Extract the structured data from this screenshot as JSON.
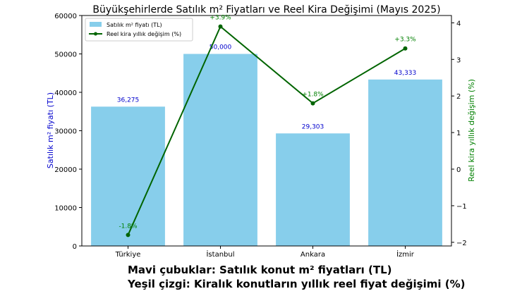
{
  "chart_data": {
    "type": "bar",
    "title": "Büyükşehirlerde Satılık m² Fiyatları ve Reel Kira Değişimi (Mayıs 2025)",
    "categories": [
      "Türkiye",
      "İstanbul",
      "Ankara",
      "İzmir"
    ],
    "series": [
      {
        "name": "Satılık m² fiyatı (TL)",
        "type": "bar",
        "axis": "left",
        "values": [
          36275,
          50000,
          29303,
          43333
        ],
        "labels": [
          "36,275",
          "50,000",
          "29,303",
          "43,333"
        ],
        "color": "#87ceeb"
      },
      {
        "name": "Reel kira yıllık değişim (%)",
        "type": "line",
        "axis": "right",
        "values": [
          -1.8,
          3.9,
          1.8,
          3.3
        ],
        "labels": [
          "-1.8%",
          "+3.9%",
          "+1.8%",
          "+3.3%"
        ],
        "color": "#006400"
      }
    ],
    "ylabel_left": "Satılık m² fiyatı (TL)",
    "ylabel_right": "Reel kira yıllık değişim (%)",
    "ylim_left": [
      0,
      60000
    ],
    "ylim_right": [
      -2.1,
      4.2
    ],
    "yticks_left": [
      0,
      10000,
      20000,
      30000,
      40000,
      50000,
      60000
    ],
    "yticks_right": [
      -2,
      -1,
      0,
      1,
      2,
      3,
      4
    ],
    "ytick_labels_right": [
      "−2",
      "−1",
      "0",
      "1",
      "2",
      "3",
      "4"
    ],
    "left_label_color": "#0000cd",
    "right_label_color": "#008000",
    "bar_label_color": "#0000cd",
    "line_label_color": "#008000",
    "grid": false,
    "legend_position": "top-left"
  },
  "caption": {
    "line1": "Mavi çubuklar: Satılık konut m² fiyatları (TL)",
    "line2": "Yeşil çizgi: Kiralık konutların yıllık reel fiyat değişimi (%)"
  }
}
